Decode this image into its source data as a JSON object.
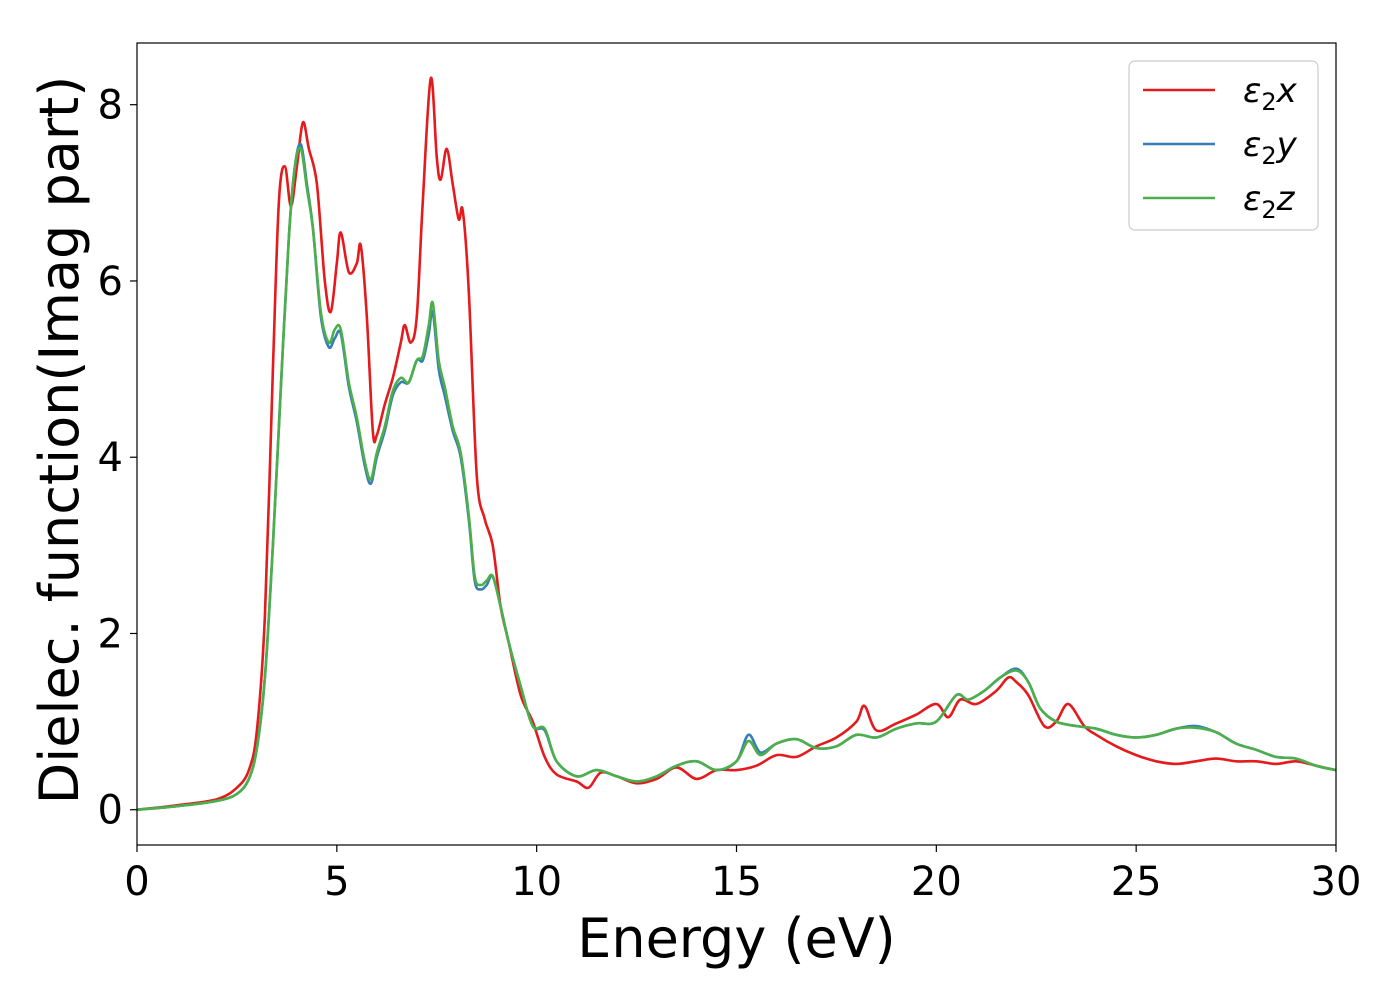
{
  "chart_data": {
    "type": "line",
    "title": "",
    "xlabel": "Energy (eV)",
    "ylabel": "Dielec. function(Imag part)",
    "xlim": [
      0,
      30
    ],
    "ylim": [
      -0.4,
      8.7
    ],
    "xticks": [
      0,
      5,
      10,
      15,
      20,
      25,
      30
    ],
    "xtick_labels": [
      "0",
      "5",
      "10",
      "15",
      "20",
      "25",
      "30"
    ],
    "yticks": [
      0,
      2,
      4,
      6,
      8
    ],
    "ytick_labels": [
      "0",
      "2",
      "4",
      "6",
      "8"
    ],
    "grid": false,
    "legend_position": "top-right",
    "series": [
      {
        "name": "ε₂x",
        "legend_base": "ε",
        "legend_sub": "2",
        "legend_suffix": "x",
        "color": "#e41a1c",
        "x": [
          0,
          1,
          2,
          2.5,
          2.8,
          3.0,
          3.2,
          3.4,
          3.55,
          3.7,
          3.85,
          4.0,
          4.15,
          4.3,
          4.5,
          4.7,
          4.85,
          5.0,
          5.1,
          5.3,
          5.5,
          5.6,
          5.75,
          5.9,
          6.0,
          6.2,
          6.4,
          6.6,
          6.7,
          6.85,
          7.0,
          7.15,
          7.35,
          7.5,
          7.6,
          7.75,
          7.9,
          8.05,
          8.15,
          8.3,
          8.5,
          8.7,
          8.9,
          9.1,
          9.3,
          9.6,
          9.9,
          10.2,
          10.5,
          11.0,
          11.3,
          11.6,
          12.0,
          12.5,
          13.0,
          13.5,
          14.0,
          14.5,
          15.0,
          15.5,
          16.0,
          16.5,
          17.0,
          17.5,
          18.0,
          18.2,
          18.5,
          19.0,
          19.5,
          20.0,
          20.3,
          20.6,
          21.0,
          21.5,
          21.8,
          22.0,
          22.3,
          22.7,
          23.0,
          23.3,
          23.7,
          24.0,
          24.5,
          25.0,
          25.5,
          26.0,
          26.5,
          27.0,
          27.5,
          28.0,
          28.5,
          29.0,
          29.5,
          30.0
        ],
        "y": [
          0.0,
          0.05,
          0.12,
          0.25,
          0.45,
          0.9,
          2.2,
          5.0,
          6.9,
          7.3,
          6.85,
          7.3,
          7.8,
          7.5,
          7.1,
          6.0,
          5.65,
          6.2,
          6.55,
          6.1,
          6.2,
          6.4,
          5.6,
          4.3,
          4.25,
          4.6,
          4.9,
          5.3,
          5.5,
          5.3,
          5.6,
          6.9,
          8.3,
          7.4,
          7.15,
          7.5,
          7.1,
          6.7,
          6.8,
          5.9,
          3.8,
          3.3,
          3.0,
          2.3,
          1.9,
          1.3,
          1.0,
          0.6,
          0.4,
          0.32,
          0.25,
          0.42,
          0.38,
          0.3,
          0.35,
          0.48,
          0.35,
          0.45,
          0.45,
          0.5,
          0.62,
          0.6,
          0.72,
          0.82,
          1.0,
          1.18,
          0.9,
          0.98,
          1.08,
          1.2,
          1.05,
          1.25,
          1.2,
          1.35,
          1.5,
          1.45,
          1.3,
          0.95,
          1.0,
          1.2,
          0.95,
          0.85,
          0.72,
          0.62,
          0.55,
          0.52,
          0.55,
          0.58,
          0.55,
          0.55,
          0.52,
          0.55,
          0.5,
          0.45
        ]
      },
      {
        "name": "ε₂y",
        "legend_base": "ε",
        "legend_sub": "2",
        "legend_suffix": "y",
        "color": "#377eb8",
        "x": [
          0,
          1,
          2,
          2.5,
          2.8,
          3.0,
          3.2,
          3.4,
          3.6,
          3.8,
          3.95,
          4.1,
          4.25,
          4.4,
          4.6,
          4.8,
          4.95,
          5.1,
          5.3,
          5.5,
          5.7,
          5.85,
          6.0,
          6.2,
          6.4,
          6.6,
          6.8,
          7.0,
          7.15,
          7.3,
          7.4,
          7.55,
          7.7,
          7.9,
          8.1,
          8.3,
          8.45,
          8.6,
          8.75,
          8.9,
          9.1,
          9.3,
          9.6,
          9.9,
          10.2,
          10.5,
          11.0,
          11.5,
          12.0,
          12.5,
          13.0,
          13.5,
          14.0,
          14.5,
          15.0,
          15.3,
          15.6,
          16.0,
          16.5,
          17.0,
          17.5,
          18.0,
          18.5,
          19.0,
          19.5,
          20.0,
          20.5,
          20.8,
          21.2,
          21.6,
          22.0,
          22.3,
          22.6,
          23.0,
          23.5,
          24.0,
          24.5,
          25.0,
          25.5,
          26.0,
          26.5,
          27.0,
          27.5,
          28.0,
          28.5,
          29.0,
          29.5,
          30.0
        ],
        "y": [
          0.0,
          0.04,
          0.1,
          0.18,
          0.35,
          0.7,
          1.5,
          3.0,
          4.8,
          6.5,
          7.3,
          7.55,
          7.1,
          6.6,
          5.6,
          5.25,
          5.35,
          5.4,
          4.8,
          4.4,
          3.9,
          3.7,
          4.0,
          4.3,
          4.7,
          4.85,
          4.85,
          5.1,
          5.1,
          5.4,
          5.65,
          5.0,
          4.7,
          4.3,
          4.0,
          3.3,
          2.6,
          2.5,
          2.55,
          2.65,
          2.3,
          1.9,
          1.4,
          0.95,
          0.9,
          0.55,
          0.38,
          0.45,
          0.38,
          0.32,
          0.38,
          0.5,
          0.55,
          0.45,
          0.55,
          0.85,
          0.65,
          0.75,
          0.8,
          0.7,
          0.72,
          0.85,
          0.82,
          0.92,
          0.98,
          1.0,
          1.3,
          1.25,
          1.35,
          1.5,
          1.6,
          1.45,
          1.15,
          1.0,
          0.95,
          0.92,
          0.85,
          0.82,
          0.85,
          0.92,
          0.95,
          0.88,
          0.75,
          0.68,
          0.6,
          0.58,
          0.5,
          0.45
        ]
      },
      {
        "name": "ε₂z",
        "legend_base": "ε",
        "legend_sub": "2",
        "legend_suffix": "z",
        "color": "#4daf4a",
        "x": [
          0,
          1,
          2,
          2.5,
          2.8,
          3.0,
          3.2,
          3.4,
          3.6,
          3.8,
          3.95,
          4.1,
          4.25,
          4.4,
          4.6,
          4.8,
          4.95,
          5.1,
          5.3,
          5.5,
          5.7,
          5.85,
          6.0,
          6.2,
          6.4,
          6.6,
          6.8,
          7.0,
          7.15,
          7.3,
          7.4,
          7.55,
          7.7,
          7.9,
          8.1,
          8.3,
          8.45,
          8.6,
          8.75,
          8.9,
          9.1,
          9.3,
          9.6,
          9.9,
          10.2,
          10.5,
          11.0,
          11.5,
          12.0,
          12.5,
          13.0,
          13.5,
          14.0,
          14.5,
          15.0,
          15.3,
          15.6,
          16.0,
          16.5,
          17.0,
          17.5,
          18.0,
          18.5,
          19.0,
          19.5,
          20.0,
          20.5,
          20.8,
          21.2,
          21.6,
          22.0,
          22.3,
          22.6,
          23.0,
          23.5,
          24.0,
          24.5,
          25.0,
          25.5,
          26.0,
          26.5,
          27.0,
          27.5,
          28.0,
          28.5,
          29.0,
          29.5,
          30.0
        ],
        "y": [
          0.0,
          0.04,
          0.1,
          0.18,
          0.35,
          0.7,
          1.5,
          3.0,
          4.8,
          6.5,
          7.3,
          7.5,
          7.05,
          6.6,
          5.65,
          5.3,
          5.45,
          5.45,
          4.85,
          4.45,
          3.95,
          3.75,
          4.05,
          4.35,
          4.75,
          4.9,
          4.85,
          5.1,
          5.15,
          5.5,
          5.75,
          5.1,
          4.8,
          4.35,
          4.05,
          3.35,
          2.65,
          2.55,
          2.6,
          2.65,
          2.3,
          1.9,
          1.4,
          0.95,
          0.92,
          0.55,
          0.38,
          0.45,
          0.38,
          0.32,
          0.38,
          0.5,
          0.55,
          0.45,
          0.55,
          0.78,
          0.62,
          0.75,
          0.8,
          0.7,
          0.72,
          0.85,
          0.82,
          0.92,
          0.98,
          1.0,
          1.3,
          1.25,
          1.35,
          1.5,
          1.58,
          1.45,
          1.15,
          1.0,
          0.95,
          0.92,
          0.85,
          0.82,
          0.85,
          0.92,
          0.93,
          0.88,
          0.75,
          0.68,
          0.6,
          0.58,
          0.5,
          0.45
        ]
      }
    ]
  }
}
